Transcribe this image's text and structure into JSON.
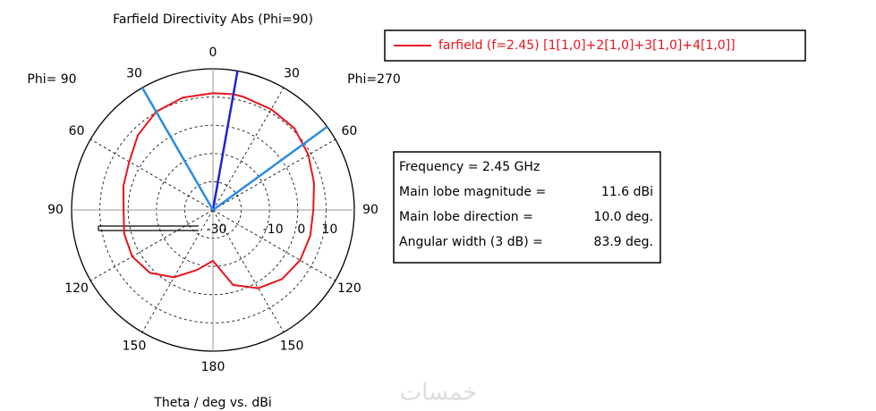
{
  "chart_data": {
    "type": "polar",
    "title": "Farfield Directivity Abs (Phi=90)",
    "x_label": "Theta / deg vs. dBi",
    "side_labels": [
      "Phi= 90",
      "Phi=270"
    ],
    "x": [
      0,
      10,
      15,
      30,
      45,
      60,
      75,
      90,
      105,
      120,
      135,
      150,
      165,
      180,
      195,
      210,
      225,
      240,
      255,
      270,
      285,
      300,
      315,
      330,
      345
    ],
    "series": [
      {
        "name": "farfield (f=2.45) [1[1,0]+2[1,0]+3[1,0]+4[1,0]]",
        "color": "#e8141c",
        "values": [
          11.4,
          11.6,
          11.5,
          11.2,
          10.8,
          9.0,
          7.0,
          5.5,
          5.6,
          5.6,
          4.6,
          2.0,
          -2.5,
          -12,
          -8,
          -2.5,
          1.5,
          3.0,
          2.5,
          1.6,
          2.8,
          4.2,
          7.5,
          10.2,
          11.2
        ]
      }
    ],
    "beam_lines": [
      {
        "angle": 10,
        "color": "#2323d6"
      },
      {
        "angle": 330,
        "color": "#2a8ce0"
      },
      {
        "angle": 53.9,
        "color": "#2a8ce0"
      }
    ],
    "rlim": [
      -30,
      20
    ],
    "rticks": [
      -30,
      -20,
      -10,
      0,
      10
    ],
    "rtick_labels_shown": [
      -30,
      -10,
      0,
      10
    ],
    "thetaticks": [
      0,
      30,
      60,
      90,
      120,
      150,
      180,
      {
        "value": 210,
        "label": "150"
      },
      {
        "value": 240,
        "label": "120"
      },
      {
        "value": 270,
        "label": "90"
      },
      {
        "value": 300,
        "label": "60"
      },
      {
        "value": 330,
        "label": "30"
      }
    ],
    "info": [
      {
        "label": "Frequency = 2.45 GHz"
      },
      {
        "label": "Main lobe magnitude =",
        "value": "11.6 dBi"
      },
      {
        "label": "Main lobe direction =",
        "value": "10.0 deg."
      },
      {
        "label": "Angular width (3 dB) =",
        "value": "83.9 deg."
      }
    ],
    "watermark": "خمسات"
  }
}
